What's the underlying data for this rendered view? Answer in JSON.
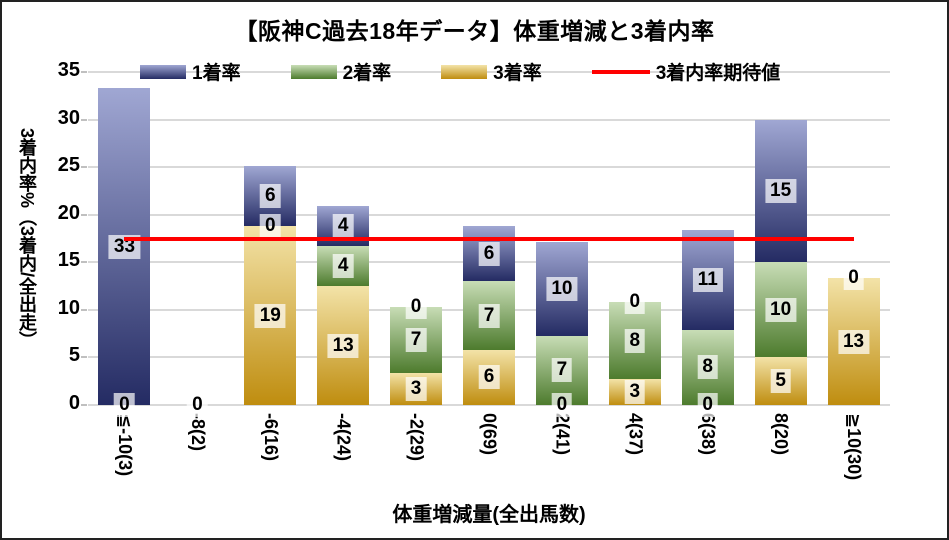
{
  "title": "【阪神C過去18年データ】体重増減と3着内率",
  "legend": [
    {
      "label": "1着率",
      "type": "box",
      "color_key": "rank1"
    },
    {
      "label": "2着率",
      "type": "box",
      "color_key": "rank2"
    },
    {
      "label": "3着率",
      "type": "box",
      "color_key": "rank3"
    },
    {
      "label": "3着内率期待値",
      "type": "line",
      "color_key": "expected"
    }
  ],
  "axes": {
    "y_title": "3着内率%（3着内/全出走）",
    "x_title": "体重増減量(全出馬数)",
    "y_ticks": [
      35,
      30,
      25,
      20,
      15,
      10,
      5,
      0
    ],
    "y_max": 35
  },
  "colors": {
    "rank1": {
      "light": "#a0a7d3",
      "dark": "#242b63"
    },
    "rank2": {
      "light": "#c8ddb6",
      "dark": "#4d7b2d"
    },
    "rank3": {
      "light": "#f3e3a8",
      "dark": "#bf8d0f"
    },
    "expected": "#ff0000",
    "grid": "#d9d9d9",
    "tick": "#c0c0c0",
    "label_bg": "rgba(255,255,255,0.7)"
  },
  "chart_data": {
    "type": "bar",
    "stacked": true,
    "title": "【阪神C過去18年データ】体重増減と3着内率",
    "xlabel": "体重増減量(全出馬数)",
    "ylabel": "3着内率%（3着内/全出走）",
    "ylim": [
      0,
      35
    ],
    "grid": true,
    "legend_position": "top",
    "categories": [
      "≦-10(3)",
      "-8(2)",
      "-6(16)",
      "-4(24)",
      "-2(29)",
      "0(69)",
      "2(41)",
      "4(37)",
      "6(38)",
      "8(20)",
      "≧10(30)"
    ],
    "series": [
      {
        "name": "3着率",
        "color_key": "rank3",
        "values": [
          0,
          0,
          18.8,
          12.5,
          3.4,
          5.8,
          0,
          2.7,
          0,
          5.0,
          13.3
        ],
        "labels": [
          "0",
          "0",
          "19",
          "13",
          "3",
          "6",
          "0",
          "3",
          "0",
          "5",
          "13"
        ]
      },
      {
        "name": "2着率",
        "color_key": "rank2",
        "values": [
          0,
          0,
          0,
          4.2,
          6.9,
          7.2,
          7.3,
          8.1,
          7.9,
          10.0,
          0
        ],
        "labels": [
          "0",
          "0",
          "0",
          "4",
          "7",
          "7",
          "7",
          "8",
          "8",
          "10",
          "0"
        ]
      },
      {
        "name": "1着率",
        "color_key": "rank1",
        "values": [
          33.3,
          0,
          6.3,
          4.2,
          0,
          5.8,
          9.8,
          0,
          10.5,
          15.0,
          0
        ],
        "labels": [
          "33",
          "0",
          "6",
          "4",
          "0",
          "6",
          "10",
          "0",
          "11",
          "15",
          "0"
        ]
      }
    ],
    "expected_line": {
      "label": "3着内率期待値",
      "value": 17.5
    }
  }
}
